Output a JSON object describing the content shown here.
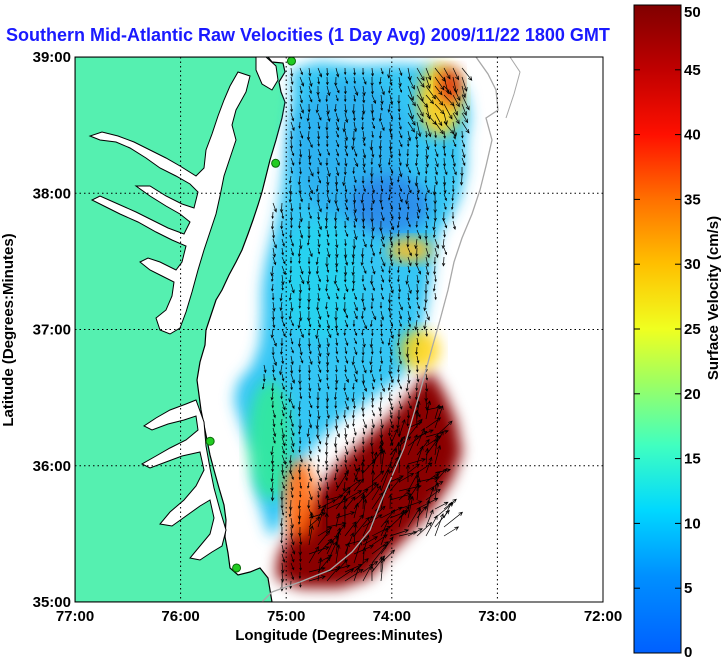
{
  "title": "Southern Mid-Atlantic Raw Velocities (1 Day Avg) 2009/11/22 1800 GMT",
  "colors": {
    "land": "#55f0b0",
    "coastline": "#000000",
    "bathymetry": "#a8a8a8",
    "stations": "#22cc22",
    "title": "#1a1aff",
    "arrows": "#000000"
  },
  "chart_data": {
    "type": "map",
    "xlabel": "Longitude (Degrees:Minutes)",
    "ylabel": "Latitude (Degrees:Minutes)",
    "xlim": [
      -77,
      -72
    ],
    "ylim": [
      35,
      39
    ],
    "x_ticks": [
      {
        "value": -77,
        "label": "77:00"
      },
      {
        "value": -76,
        "label": "76:00"
      },
      {
        "value": -75,
        "label": "75:00"
      },
      {
        "value": -74,
        "label": "74:00"
      },
      {
        "value": -73,
        "label": "73:00"
      },
      {
        "value": -72,
        "label": "72:00"
      }
    ],
    "y_ticks": [
      {
        "value": 35,
        "label": "35:00"
      },
      {
        "value": 36,
        "label": "36:00"
      },
      {
        "value": 37,
        "label": "37:00"
      },
      {
        "value": 38,
        "label": "38:00"
      },
      {
        "value": 39,
        "label": "39:00"
      }
    ],
    "grid": true,
    "colorbar": {
      "label": "Surface Velocity (cm/s)",
      "range": [
        0,
        50
      ],
      "ticks": [
        0,
        5,
        10,
        15,
        20,
        25,
        30,
        35,
        40,
        45,
        50
      ],
      "colormap": "jet"
    },
    "radar_stations": [
      {
        "lon": -74.95,
        "lat": 38.97
      },
      {
        "lon": -75.1,
        "lat": 38.22
      },
      {
        "lon": -75.72,
        "lat": 36.18
      },
      {
        "lon": -75.47,
        "lat": 35.25
      }
    ]
  }
}
